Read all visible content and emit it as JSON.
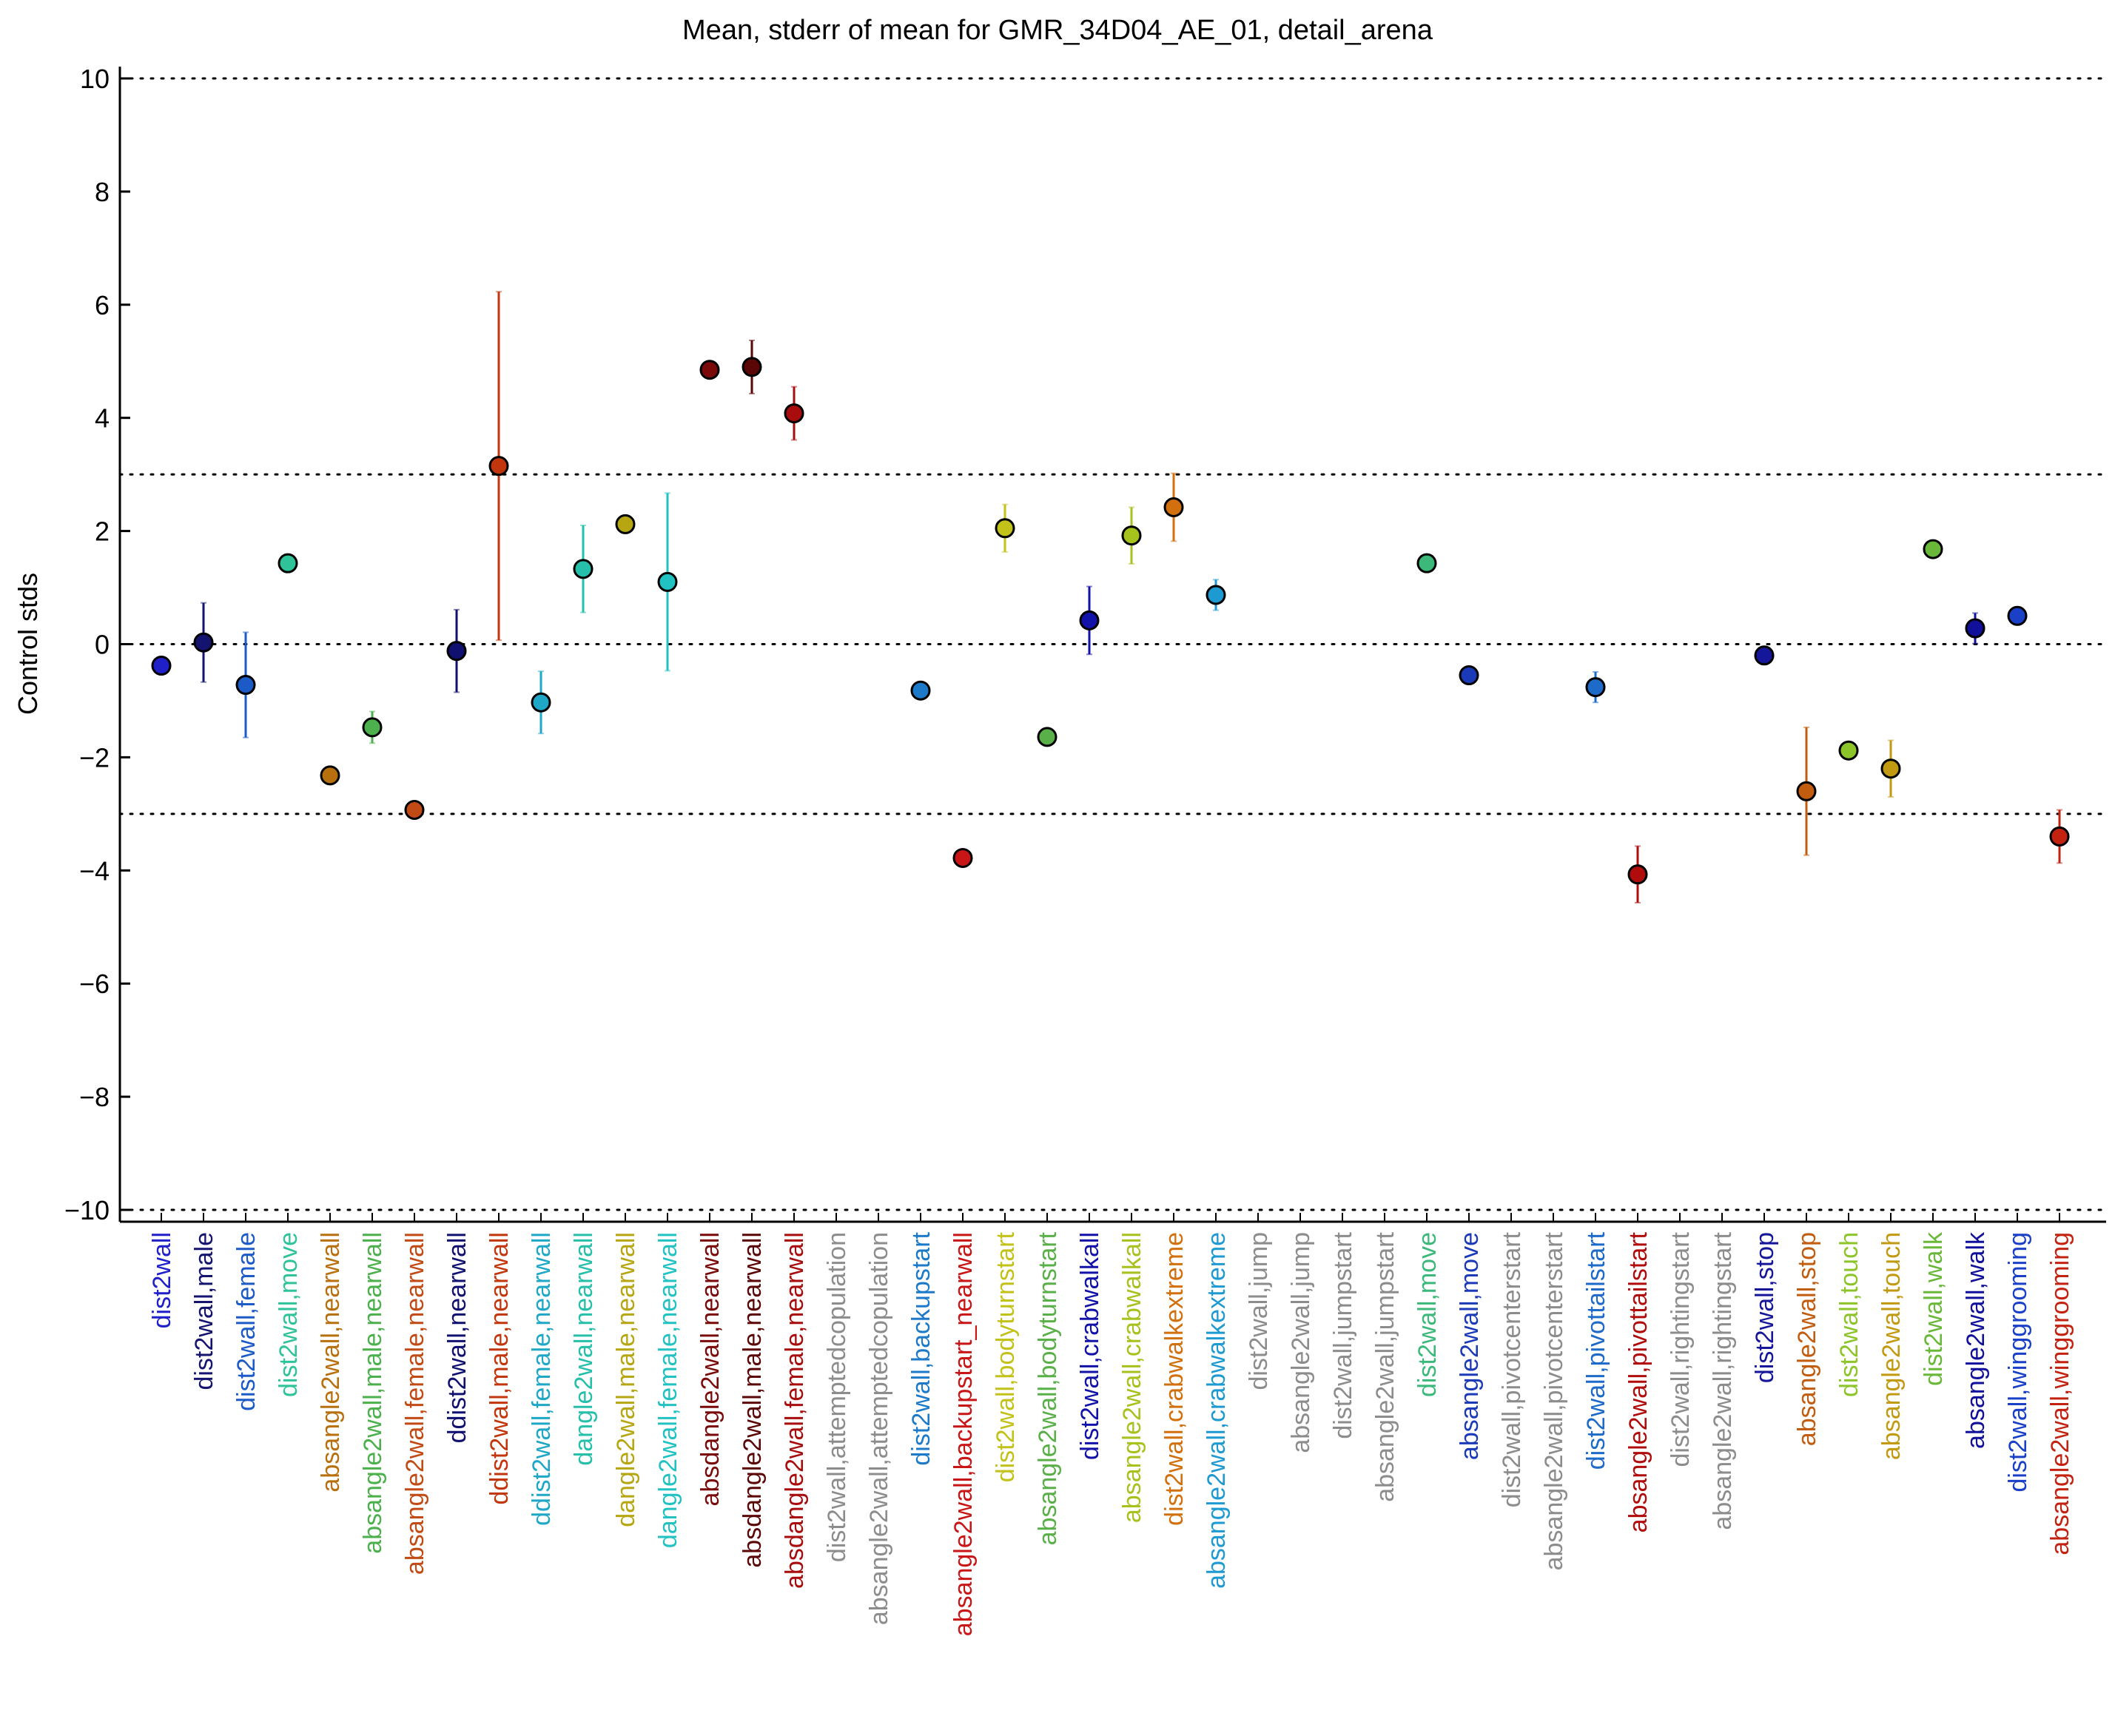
{
  "chart_data": {
    "type": "scatter",
    "title": "Mean, stderr of mean for GMR_34D04_AE_01, detail_arena",
    "xlabel": "",
    "ylabel": "Control stds",
    "ylim": [
      -10.3,
      10.2
    ],
    "yticks": [
      10,
      8,
      6,
      4,
      2,
      0,
      -2,
      -4,
      -6,
      -8,
      -10
    ],
    "ytick_labels": [
      "10",
      "8",
      "6",
      "4",
      "2",
      "0",
      "−2",
      "−4",
      "−6",
      "−8",
      "−10"
    ],
    "reference_lines": [
      10,
      3,
      0,
      -3,
      -10
    ],
    "grid": false,
    "legend": "none",
    "points": [
      {
        "label": "dist2wall",
        "mean": -0.38,
        "err": null,
        "color": "#2020c8"
      },
      {
        "label": "dist2wall,male",
        "mean": 0.03,
        "err": 0.7,
        "color": "#141470"
      },
      {
        "label": "dist2wall,female",
        "mean": -0.72,
        "err": 0.93,
        "color": "#1c5ac8"
      },
      {
        "label": "dist2wall,move",
        "mean": 1.43,
        "err": null,
        "color": "#2fc39a"
      },
      {
        "label": "absangle2wall,nearwall",
        "mean": -2.32,
        "err": null,
        "color": "#b8700e"
      },
      {
        "label": "absangle2wall,male,nearwall",
        "mean": -1.47,
        "err": 0.28,
        "color": "#4cb04c"
      },
      {
        "label": "absangle2wall,female,nearwall",
        "mean": -2.93,
        "err": null,
        "color": "#c24a14"
      },
      {
        "label": "ddist2wall,nearwall",
        "mean": -0.12,
        "err": 0.73,
        "color": "#101070"
      },
      {
        "label": "ddist2wall,male,nearwall",
        "mean": 3.15,
        "err": 3.08,
        "color": "#c2360e"
      },
      {
        "label": "ddist2wall,female,nearwall",
        "mean": -1.03,
        "err": 0.55,
        "color": "#1fa7c8"
      },
      {
        "label": "dangle2wall,nearwall",
        "mean": 1.33,
        "err": 0.77,
        "color": "#26bfa9"
      },
      {
        "label": "dangle2wall,male,nearwall",
        "mean": 2.12,
        "err": null,
        "color": "#b6a612"
      },
      {
        "label": "dangle2wall,female,nearwall",
        "mean": 1.1,
        "err": 1.57,
        "color": "#22c2c2"
      },
      {
        "label": "absdangle2wall,nearwall",
        "mean": 4.85,
        "err": null,
        "color": "#7a0a0a"
      },
      {
        "label": "absdangle2wall,male,nearwall",
        "mean": 4.9,
        "err": 0.47,
        "color": "#5a0606"
      },
      {
        "label": "absdangle2wall,female,nearwall",
        "mean": 4.08,
        "err": 0.47,
        "color": "#a80c0c"
      },
      {
        "label": "dist2wall,attemptedcopulation",
        "mean": null,
        "err": null,
        "color": "#8c8c8c"
      },
      {
        "label": "absangle2wall,attemptedcopulation",
        "mean": null,
        "err": null,
        "color": "#8c8c8c"
      },
      {
        "label": "dist2wall,backupstart",
        "mean": -0.82,
        "err": null,
        "color": "#1c7ac8"
      },
      {
        "label": "absangle2wall,backupstart_nearwall",
        "mean": -3.78,
        "err": null,
        "color": "#c81616"
      },
      {
        "label": "dist2wall,bodyturnstart",
        "mean": 2.05,
        "err": 0.42,
        "color": "#c2c21a"
      },
      {
        "label": "absangle2wall,bodyturnstart",
        "mean": -1.64,
        "err": null,
        "color": "#5ab048"
      },
      {
        "label": "dist2wall,crabwalkall",
        "mean": 0.42,
        "err": 0.6,
        "color": "#1212a8"
      },
      {
        "label": "absangle2wall,crabwalkall",
        "mean": 1.92,
        "err": 0.5,
        "color": "#a6c21c"
      },
      {
        "label": "dist2wall,crabwalkextreme",
        "mean": 2.42,
        "err": 0.6,
        "color": "#d2700e"
      },
      {
        "label": "absangle2wall,crabwalkextreme",
        "mean": 0.87,
        "err": 0.27,
        "color": "#1e9ad2"
      },
      {
        "label": "dist2wall,jump",
        "mean": null,
        "err": null,
        "color": "#8c8c8c"
      },
      {
        "label": "absangle2wall,jump",
        "mean": null,
        "err": null,
        "color": "#8c8c8c"
      },
      {
        "label": "dist2wall,jumpstart",
        "mean": null,
        "err": null,
        "color": "#8c8c8c"
      },
      {
        "label": "absangle2wall,jumpstart",
        "mean": null,
        "err": null,
        "color": "#8c8c8c"
      },
      {
        "label": "dist2wall,move",
        "mean": 1.43,
        "err": null,
        "color": "#3cb87a"
      },
      {
        "label": "absangle2wall,move",
        "mean": -0.55,
        "err": null,
        "color": "#1a3ab8"
      },
      {
        "label": "dist2wall,pivotcenterstart",
        "mean": null,
        "err": null,
        "color": "#8c8c8c"
      },
      {
        "label": "absangle2wall,pivotcenterstart",
        "mean": null,
        "err": null,
        "color": "#8c8c8c"
      },
      {
        "label": "dist2wall,pivottailstart",
        "mean": -0.76,
        "err": 0.27,
        "color": "#1e6ac8"
      },
      {
        "label": "absangle2wall,pivottailstart",
        "mean": -4.07,
        "err": 0.5,
        "color": "#b00c0c"
      },
      {
        "label": "dist2wall,rightingstart",
        "mean": null,
        "err": null,
        "color": "#8c8c8c"
      },
      {
        "label": "absangle2wall,rightingstart",
        "mean": null,
        "err": null,
        "color": "#8c8c8c"
      },
      {
        "label": "dist2wall,stop",
        "mean": -0.2,
        "err": null,
        "color": "#16169a"
      },
      {
        "label": "absangle2wall,stop",
        "mean": -2.6,
        "err": 1.13,
        "color": "#c25c0e"
      },
      {
        "label": "dist2wall,touch",
        "mean": -1.88,
        "err": null,
        "color": "#8cc42a"
      },
      {
        "label": "absangle2wall,touch",
        "mean": -2.2,
        "err": 0.5,
        "color": "#c29a12"
      },
      {
        "label": "dist2wall,walk",
        "mean": 1.68,
        "err": null,
        "color": "#6ab83a"
      },
      {
        "label": "absangle2wall,walk",
        "mean": 0.28,
        "err": 0.27,
        "color": "#10109a"
      },
      {
        "label": "dist2wall,winggrooming",
        "mean": 0.5,
        "err": null,
        "color": "#1a40c8"
      },
      {
        "label": "absangle2wall,winggrooming",
        "mean": -3.4,
        "err": 0.47,
        "color": "#c42210"
      }
    ]
  }
}
